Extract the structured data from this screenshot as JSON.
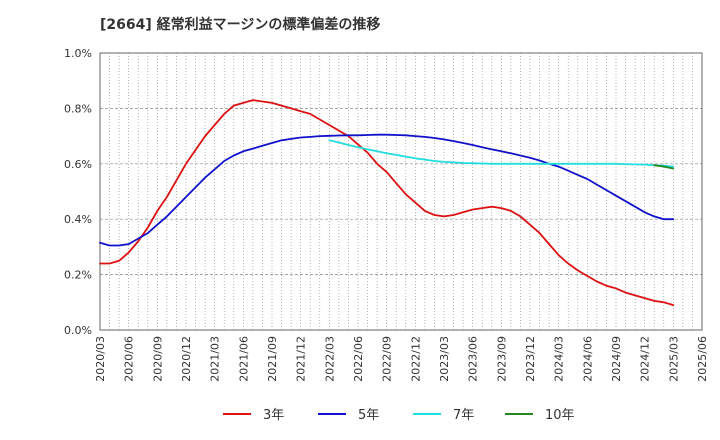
{
  "chart_data": {
    "type": "line",
    "title": "[2664]  経常利益マージンの標準偏差の推移",
    "xlabel": "",
    "ylabel": "",
    "ylim": [
      0,
      1.0
    ],
    "y_ticks": [
      "0.0%",
      "0.2%",
      "0.4%",
      "0.6%",
      "0.8%",
      "1.0%"
    ],
    "y_tick_values": [
      0,
      0.2,
      0.4,
      0.6,
      0.8,
      1.0
    ],
    "x_ticks": [
      "2020/03",
      "2020/06",
      "2020/09",
      "2020/12",
      "2021/03",
      "2021/06",
      "2021/09",
      "2021/12",
      "2022/03",
      "2022/06",
      "2022/09",
      "2022/12",
      "2023/03",
      "2023/06",
      "2023/09",
      "2023/12",
      "2024/03",
      "2024/06",
      "2024/09",
      "2024/12",
      "2025/03",
      "2025/06"
    ],
    "grid": true,
    "legend_position": "bottom",
    "series": [
      {
        "name": "3年",
        "color": "#dd1111",
        "points": [
          [
            "2020/03",
            0.24
          ],
          [
            "2020/04",
            0.24
          ],
          [
            "2020/05",
            0.25
          ],
          [
            "2020/06",
            0.28
          ],
          [
            "2020/07",
            0.32
          ],
          [
            "2020/08",
            0.37
          ],
          [
            "2020/09",
            0.43
          ],
          [
            "2020/10",
            0.48
          ],
          [
            "2020/11",
            0.54
          ],
          [
            "2020/12",
            0.6
          ],
          [
            "2021/01",
            0.65
          ],
          [
            "2021/02",
            0.7
          ],
          [
            "2021/03",
            0.74
          ],
          [
            "2021/04",
            0.78
          ],
          [
            "2021/05",
            0.81
          ],
          [
            "2021/06",
            0.82
          ],
          [
            "2021/07",
            0.83
          ],
          [
            "2021/08",
            0.825
          ],
          [
            "2021/09",
            0.82
          ],
          [
            "2021/10",
            0.81
          ],
          [
            "2021/11",
            0.8
          ],
          [
            "2021/12",
            0.79
          ],
          [
            "2022/01",
            0.78
          ],
          [
            "2022/02",
            0.76
          ],
          [
            "2022/03",
            0.74
          ],
          [
            "2022/04",
            0.72
          ],
          [
            "2022/05",
            0.7
          ],
          [
            "2022/06",
            0.67
          ],
          [
            "2022/07",
            0.64
          ],
          [
            "2022/08",
            0.6
          ],
          [
            "2022/09",
            0.57
          ],
          [
            "2022/10",
            0.53
          ],
          [
            "2022/11",
            0.49
          ],
          [
            "2022/12",
            0.46
          ],
          [
            "2023/01",
            0.43
          ],
          [
            "2023/02",
            0.415
          ],
          [
            "2023/03",
            0.41
          ],
          [
            "2023/04",
            0.415
          ],
          [
            "2023/05",
            0.425
          ],
          [
            "2023/06",
            0.435
          ],
          [
            "2023/07",
            0.44
          ],
          [
            "2023/08",
            0.445
          ],
          [
            "2023/09",
            0.44
          ],
          [
            "2023/10",
            0.43
          ],
          [
            "2023/11",
            0.41
          ],
          [
            "2023/12",
            0.38
          ],
          [
            "2024/01",
            0.35
          ],
          [
            "2024/02",
            0.31
          ],
          [
            "2024/03",
            0.27
          ],
          [
            "2024/04",
            0.24
          ],
          [
            "2024/05",
            0.215
          ],
          [
            "2024/06",
            0.195
          ],
          [
            "2024/07",
            0.175
          ],
          [
            "2024/08",
            0.16
          ],
          [
            "2024/09",
            0.15
          ],
          [
            "2024/10",
            0.135
          ],
          [
            "2024/11",
            0.125
          ],
          [
            "2024/12",
            0.115
          ],
          [
            "2025/01",
            0.105
          ],
          [
            "2025/02",
            0.1
          ],
          [
            "2025/03",
            0.09
          ]
        ]
      },
      {
        "name": "5年",
        "color": "#1111cc",
        "points": [
          [
            "2020/03",
            0.315
          ],
          [
            "2020/04",
            0.305
          ],
          [
            "2020/05",
            0.305
          ],
          [
            "2020/06",
            0.31
          ],
          [
            "2020/07",
            0.33
          ],
          [
            "2020/08",
            0.35
          ],
          [
            "2020/09",
            0.38
          ],
          [
            "2020/10",
            0.41
          ],
          [
            "2020/11",
            0.445
          ],
          [
            "2020/12",
            0.48
          ],
          [
            "2021/01",
            0.515
          ],
          [
            "2021/02",
            0.55
          ],
          [
            "2021/03",
            0.58
          ],
          [
            "2021/04",
            0.61
          ],
          [
            "2021/05",
            0.63
          ],
          [
            "2021/06",
            0.645
          ],
          [
            "2021/07",
            0.655
          ],
          [
            "2021/08",
            0.665
          ],
          [
            "2021/09",
            0.675
          ],
          [
            "2021/10",
            0.685
          ],
          [
            "2021/11",
            0.69
          ],
          [
            "2021/12",
            0.695
          ],
          [
            "2022/01",
            0.697
          ],
          [
            "2022/02",
            0.7
          ],
          [
            "2022/03",
            0.701
          ],
          [
            "2022/04",
            0.702
          ],
          [
            "2022/05",
            0.703
          ],
          [
            "2022/06",
            0.703
          ],
          [
            "2022/07",
            0.704
          ],
          [
            "2022/08",
            0.705
          ],
          [
            "2022/09",
            0.705
          ],
          [
            "2022/10",
            0.704
          ],
          [
            "2022/11",
            0.703
          ],
          [
            "2022/12",
            0.7
          ],
          [
            "2023/01",
            0.697
          ],
          [
            "2023/02",
            0.693
          ],
          [
            "2023/03",
            0.688
          ],
          [
            "2023/04",
            0.682
          ],
          [
            "2023/05",
            0.675
          ],
          [
            "2023/06",
            0.668
          ],
          [
            "2023/07",
            0.66
          ],
          [
            "2023/08",
            0.652
          ],
          [
            "2023/09",
            0.645
          ],
          [
            "2023/10",
            0.638
          ],
          [
            "2023/11",
            0.63
          ],
          [
            "2023/12",
            0.622
          ],
          [
            "2024/01",
            0.612
          ],
          [
            "2024/02",
            0.6
          ],
          [
            "2024/03",
            0.59
          ],
          [
            "2024/04",
            0.575
          ],
          [
            "2024/05",
            0.56
          ],
          [
            "2024/06",
            0.545
          ],
          [
            "2024/07",
            0.525
          ],
          [
            "2024/08",
            0.505
          ],
          [
            "2024/09",
            0.485
          ],
          [
            "2024/10",
            0.465
          ],
          [
            "2024/11",
            0.445
          ],
          [
            "2024/12",
            0.425
          ],
          [
            "2025/01",
            0.41
          ],
          [
            "2025/02",
            0.4
          ],
          [
            "2025/03",
            0.4
          ]
        ]
      },
      {
        "name": "7年",
        "color": "#22dddd",
        "points": [
          [
            "2022/03",
            0.685
          ],
          [
            "2022/04",
            0.677
          ],
          [
            "2022/05",
            0.668
          ],
          [
            "2022/06",
            0.66
          ],
          [
            "2022/07",
            0.652
          ],
          [
            "2022/08",
            0.645
          ],
          [
            "2022/09",
            0.638
          ],
          [
            "2022/10",
            0.632
          ],
          [
            "2022/11",
            0.626
          ],
          [
            "2022/12",
            0.62
          ],
          [
            "2023/01",
            0.615
          ],
          [
            "2023/02",
            0.61
          ],
          [
            "2023/03",
            0.607
          ],
          [
            "2023/04",
            0.605
          ],
          [
            "2023/05",
            0.603
          ],
          [
            "2023/06",
            0.602
          ],
          [
            "2023/07",
            0.601
          ],
          [
            "2023/08",
            0.6
          ],
          [
            "2023/09",
            0.6
          ],
          [
            "2023/10",
            0.6
          ],
          [
            "2023/11",
            0.6
          ],
          [
            "2023/12",
            0.6
          ],
          [
            "2024/01",
            0.6
          ],
          [
            "2024/02",
            0.6
          ],
          [
            "2024/03",
            0.6
          ],
          [
            "2024/04",
            0.6
          ],
          [
            "2024/05",
            0.6
          ],
          [
            "2024/06",
            0.6
          ],
          [
            "2024/07",
            0.6
          ],
          [
            "2024/08",
            0.6
          ],
          [
            "2024/09",
            0.6
          ],
          [
            "2024/10",
            0.599
          ],
          [
            "2024/11",
            0.598
          ],
          [
            "2024/12",
            0.597
          ],
          [
            "2025/01",
            0.595
          ],
          [
            "2025/02",
            0.593
          ],
          [
            "2025/03",
            0.59
          ]
        ]
      },
      {
        "name": "10年",
        "color": "#228822",
        "points": [
          [
            "2025/01",
            0.595
          ],
          [
            "2025/02",
            0.59
          ],
          [
            "2025/03",
            0.583
          ]
        ]
      }
    ]
  }
}
